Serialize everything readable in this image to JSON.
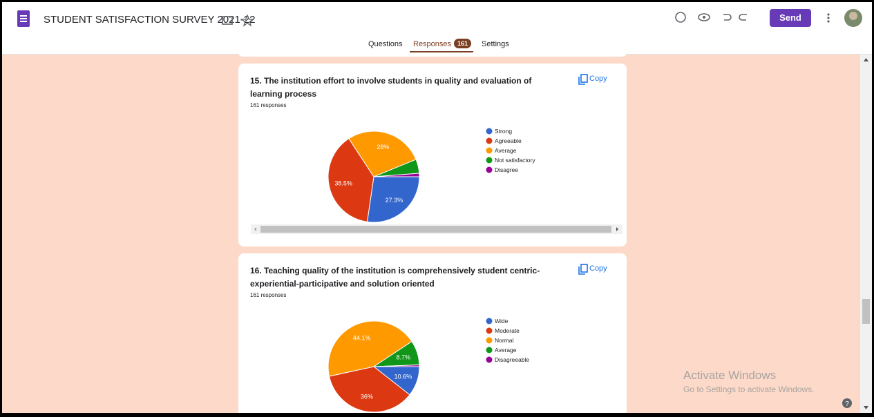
{
  "header": {
    "title": "STUDENT SATISFACTION SURVEY 2021-22",
    "send": "Send"
  },
  "tabs": {
    "questions": "Questions",
    "responses": "Responses",
    "response_count": "161",
    "settings": "Settings"
  },
  "cards": [
    {
      "title": "15.  The institution effort to involve students in quality and evaluation of learning process",
      "responses": "161 responses",
      "copy": "Copy",
      "chart_data": {
        "type": "pie",
        "categories": [
          "Strong",
          "Agreeable",
          "Average",
          "Not satisfactory",
          "Disagree"
        ],
        "values": [
          27.3,
          38.5,
          28,
          5,
          1.2
        ],
        "value_labels": [
          "27.3%",
          "38.5%",
          "28%",
          null,
          null
        ],
        "colors": [
          "#3366cc",
          "#dc3912",
          "#ff9900",
          "#109618",
          "#990099"
        ]
      }
    },
    {
      "title": "16. Teaching quality of the institution is comprehensively student centric-experiential-participative and solution oriented",
      "responses": "161 responses",
      "copy": "Copy",
      "chart_data": {
        "type": "pie",
        "categories": [
          "Wide",
          "Moderate",
          "Normal",
          "Average",
          "Disagreeable"
        ],
        "values": [
          10.6,
          36,
          44.1,
          8.7,
          0.6
        ],
        "value_labels": [
          "10.6%",
          "36%",
          "44.1%",
          "8.7%",
          null
        ],
        "colors": [
          "#3366cc",
          "#dc3912",
          "#ff9900",
          "#109618",
          "#990099"
        ]
      }
    }
  ],
  "watermark": {
    "line1": "Activate Windows",
    "line2": "Go to Settings to activate Windows."
  }
}
